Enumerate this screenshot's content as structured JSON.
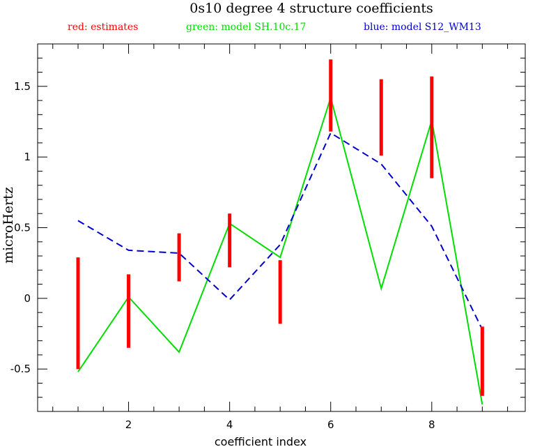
{
  "chart_data": {
    "type": "line",
    "title": "0s10 degree 4 structure coefficients",
    "xlabel": "coefficient index",
    "ylabel": "microHertz",
    "xlim": [
      0.2,
      9.85
    ],
    "ylim": [
      -0.8,
      1.8
    ],
    "xticks": [
      2,
      4,
      6,
      8
    ],
    "xtick_labels": [
      "2",
      "4",
      "6",
      "8"
    ],
    "yticks": [
      -0.5,
      0,
      0.5,
      1,
      1.5
    ],
    "ytick_labels": [
      "-0.5",
      "0",
      "0.5",
      "1",
      "1.5"
    ],
    "legend": [
      {
        "text": "red: estimates",
        "color": "#ff0000"
      },
      {
        "text": "green: model SH.10c.17",
        "color": "#00dd00"
      },
      {
        "text": "blue: model S12_WM13",
        "color": "#0000cc"
      }
    ],
    "estimates": {
      "color": "#ff0000",
      "x": [
        1,
        2,
        3,
        4,
        5,
        6,
        7,
        8,
        9
      ],
      "low": [
        -0.5,
        -0.35,
        0.12,
        0.22,
        -0.18,
        1.18,
        1.01,
        0.85,
        -0.69
      ],
      "high": [
        0.29,
        0.17,
        0.46,
        0.6,
        0.27,
        1.69,
        1.55,
        1.57,
        -0.2
      ]
    },
    "series": [
      {
        "color": "#00dd00",
        "style": "solid",
        "x": [
          1,
          2,
          3,
          4,
          5,
          6,
          7,
          8,
          9
        ],
        "values": [
          -0.52,
          0.01,
          -0.38,
          0.53,
          0.29,
          1.42,
          0.07,
          1.26,
          -0.75
        ]
      },
      {
        "color": "#0000cc",
        "style": "dashed",
        "x": [
          1,
          2,
          3,
          4,
          5,
          6,
          7,
          8,
          9
        ],
        "values": [
          0.55,
          0.34,
          0.32,
          -0.01,
          0.38,
          1.17,
          0.95,
          0.51,
          -0.22
        ]
      }
    ]
  }
}
